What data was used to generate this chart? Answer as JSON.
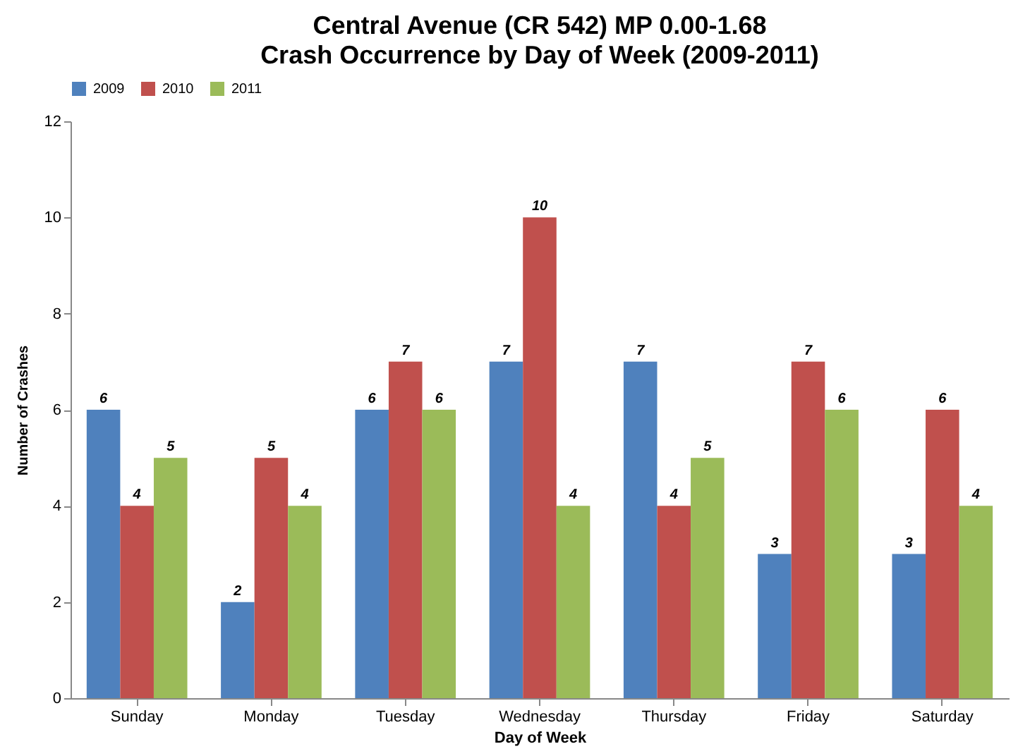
{
  "chart_data": {
    "type": "bar",
    "title": "Central Avenue (CR 542) MP 0.00-1.68",
    "subtitle": "Crash Occurrence by Day of Week (2009-2011)",
    "xlabel": "Day of Week",
    "ylabel": "Number of Crashes",
    "categories": [
      "Sunday",
      "Monday",
      "Tuesday",
      "Wednesday",
      "Thursday",
      "Friday",
      "Saturday"
    ],
    "series": [
      {
        "name": "2009",
        "color": "#4f81bd",
        "values": [
          6,
          2,
          6,
          7,
          7,
          3,
          3
        ]
      },
      {
        "name": "2010",
        "color": "#c0504d",
        "values": [
          4,
          5,
          7,
          10,
          4,
          7,
          6
        ]
      },
      {
        "name": "2011",
        "color": "#9bbb59",
        "values": [
          5,
          4,
          6,
          4,
          5,
          6,
          4
        ]
      }
    ],
    "ylim": [
      0,
      12
    ],
    "yticks": [
      0,
      2,
      4,
      6,
      8,
      10,
      12
    ],
    "legend": "top",
    "data_labels": true
  }
}
